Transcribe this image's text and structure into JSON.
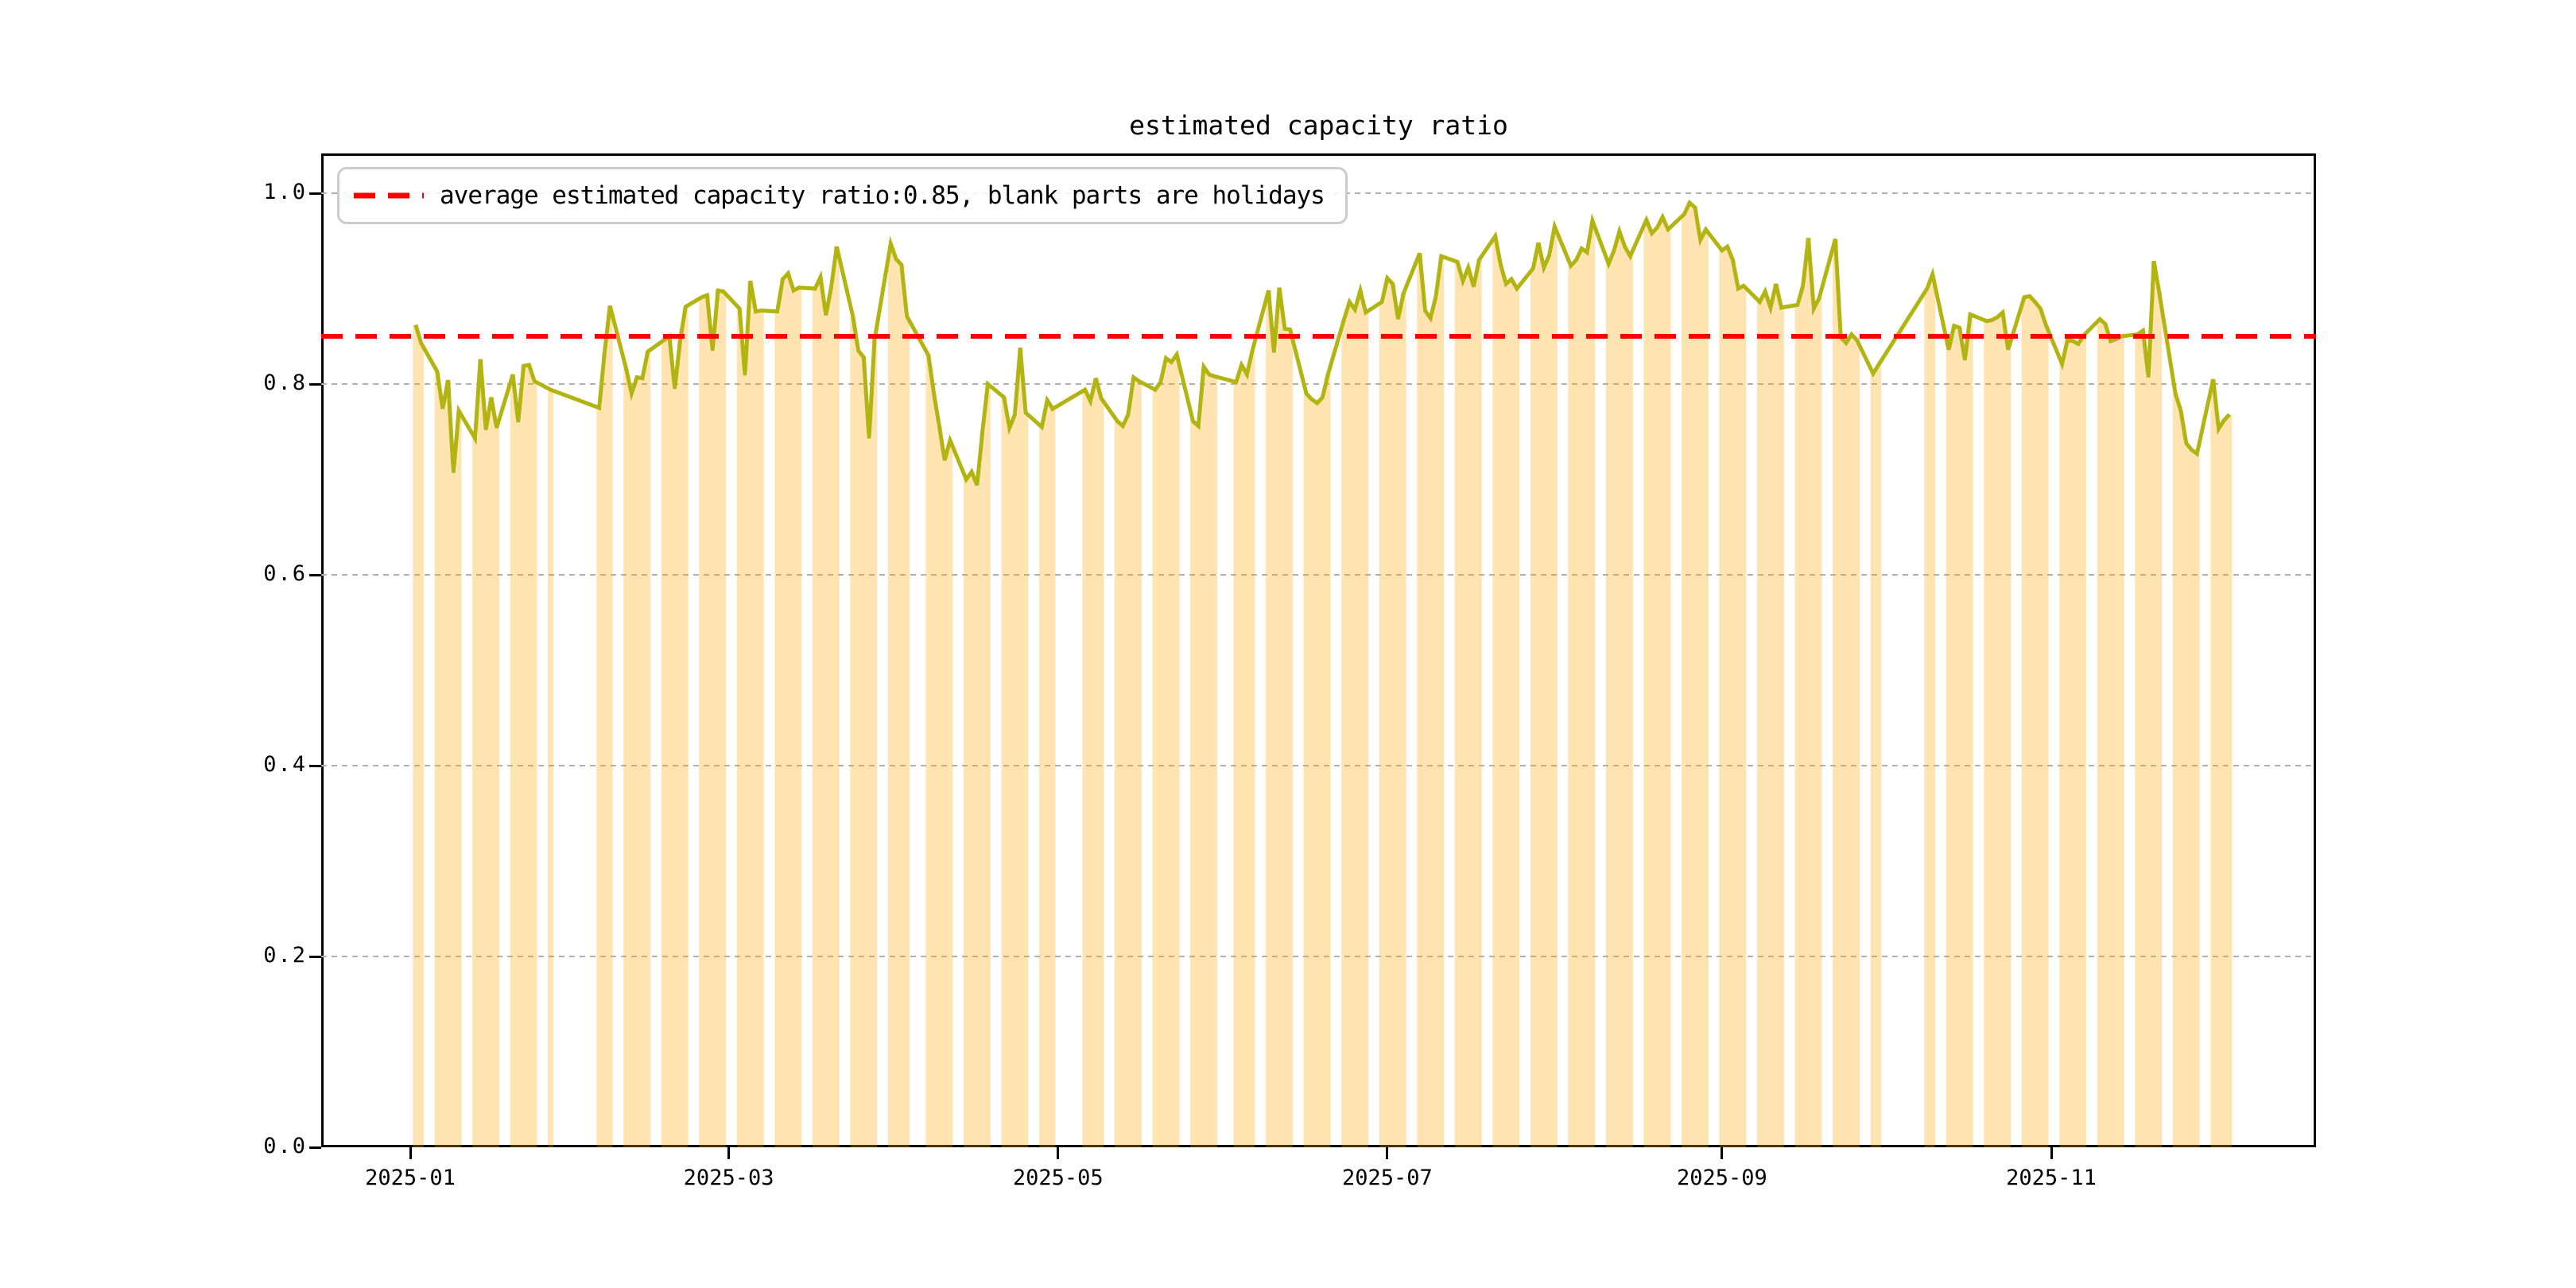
{
  "chart_data": {
    "type": "line+bar",
    "title": "estimated capacity ratio",
    "series_name": "estimated capacity ratio",
    "legend": {
      "position": "upper-left",
      "entries": [
        {
          "marker": "red-dashed-line",
          "label": "average estimated capacity ratio:0.85, blank parts are holidays"
        }
      ]
    },
    "average_line": {
      "value": 0.85,
      "color": "#ff0000",
      "style": "dashed"
    },
    "colors": {
      "line": "#b1b411",
      "bar_fill": "rgba(255,165,0,0.3)",
      "grid": "#b0b0b0",
      "spine": "#000000",
      "background": "#ffffff"
    },
    "grid": true,
    "x_axis": {
      "tick_dates": [
        "2025-01-01",
        "2025-03-01",
        "2025-05-01",
        "2025-07-01",
        "2025-09-01",
        "2025-11-01"
      ],
      "tick_labels": [
        "2025-01",
        "2025-03",
        "2025-05",
        "2025-07",
        "2025-09",
        "2025-11"
      ],
      "data_start": "2025-01-02",
      "data_end": "2025-12-04"
    },
    "y_axis": {
      "tick_labels": [
        "0.0",
        "0.2",
        "0.4",
        "0.6",
        "0.8",
        "1.0"
      ],
      "ticks": [
        0.0,
        0.2,
        0.4,
        0.6,
        0.8,
        1.0
      ],
      "range": [
        0.0,
        1.0417
      ]
    },
    "note": "bars = workdays (ratio value); blank parts are holidays/weekends; line connects workday values across gaps",
    "points_by_month": [
      {
        "month": "2025-01",
        "days": [
          2,
          3,
          6,
          7,
          8,
          9,
          10,
          13,
          14,
          15,
          16,
          17,
          20,
          21,
          22,
          23,
          24,
          27
        ],
        "values": [
          0.862,
          0.843,
          0.813,
          0.774,
          0.804,
          0.707,
          0.772,
          0.743,
          0.826,
          0.752,
          0.786,
          0.754,
          0.81,
          0.76,
          0.819,
          0.82,
          0.803,
          0.794
        ]
      },
      {
        "month": "2025-02",
        "days": [
          5,
          6,
          7,
          10,
          11,
          12,
          13,
          14,
          17,
          18,
          19,
          20,
          21,
          24,
          25,
          26,
          27,
          28
        ],
        "values": [
          0.775,
          0.833,
          0.882,
          0.816,
          0.79,
          0.807,
          0.806,
          0.834,
          0.846,
          0.85,
          0.795,
          0.846,
          0.881,
          0.891,
          0.893,
          0.835,
          0.898,
          0.897
        ]
      },
      {
        "month": "2025-03",
        "days": [
          3,
          4,
          5,
          6,
          7,
          10,
          11,
          12,
          13,
          14,
          17,
          18,
          19,
          20,
          21,
          24,
          25,
          26,
          27,
          28,
          31
        ],
        "values": [
          0.879,
          0.809,
          0.908,
          0.876,
          0.877,
          0.876,
          0.91,
          0.916,
          0.898,
          0.901,
          0.9,
          0.912,
          0.872,
          0.902,
          0.944,
          0.871,
          0.835,
          0.828,
          0.743,
          0.846,
          0.947
        ]
      },
      {
        "month": "2025-04",
        "days": [
          1,
          2,
          3,
          7,
          8,
          9,
          10,
          11,
          14,
          15,
          16,
          17,
          18,
          21,
          22,
          23,
          24,
          25,
          28,
          29,
          30
        ],
        "values": [
          0.931,
          0.925,
          0.871,
          0.83,
          0.79,
          0.756,
          0.72,
          0.741,
          0.7,
          0.708,
          0.694,
          0.75,
          0.8,
          0.786,
          0.754,
          0.768,
          0.838,
          0.77,
          0.755,
          0.783,
          0.774
        ]
      },
      {
        "month": "2025-05",
        "days": [
          6,
          7,
          8,
          9,
          12,
          13,
          14,
          15,
          16,
          19,
          20,
          21,
          22,
          23,
          26,
          27,
          28,
          29,
          30
        ],
        "values": [
          0.794,
          0.782,
          0.806,
          0.785,
          0.761,
          0.756,
          0.768,
          0.807,
          0.803,
          0.794,
          0.802,
          0.827,
          0.823,
          0.831,
          0.761,
          0.756,
          0.818,
          0.81,
          0.808
        ]
      },
      {
        "month": "2025-06",
        "days": [
          3,
          4,
          5,
          6,
          9,
          10,
          11,
          12,
          13,
          16,
          17,
          18,
          19,
          20,
          23,
          24,
          25,
          26,
          27,
          30
        ],
        "values": [
          0.802,
          0.82,
          0.81,
          0.835,
          0.898,
          0.833,
          0.901,
          0.858,
          0.857,
          0.79,
          0.784,
          0.78,
          0.786,
          0.81,
          0.868,
          0.886,
          0.878,
          0.898,
          0.875,
          0.886
        ]
      },
      {
        "month": "2025-07",
        "days": [
          1,
          2,
          3,
          4,
          7,
          8,
          9,
          10,
          11,
          14,
          15,
          16,
          17,
          18,
          21,
          22,
          23,
          24,
          25,
          28,
          29,
          30,
          31
        ],
        "values": [
          0.911,
          0.905,
          0.868,
          0.895,
          0.937,
          0.877,
          0.869,
          0.892,
          0.934,
          0.928,
          0.908,
          0.922,
          0.902,
          0.93,
          0.955,
          0.925,
          0.905,
          0.91,
          0.9,
          0.921,
          0.948,
          0.922,
          0.935
        ]
      },
      {
        "month": "2025-08",
        "days": [
          1,
          4,
          5,
          6,
          7,
          8,
          11,
          12,
          13,
          14,
          15,
          18,
          19,
          20,
          21,
          22,
          25,
          26,
          27,
          28,
          29
        ],
        "values": [
          0.965,
          0.924,
          0.93,
          0.942,
          0.938,
          0.971,
          0.926,
          0.94,
          0.96,
          0.944,
          0.934,
          0.972,
          0.958,
          0.964,
          0.975,
          0.962,
          0.978,
          0.99,
          0.985,
          0.951,
          0.962
        ]
      },
      {
        "month": "2025-09",
        "days": [
          1,
          2,
          3,
          4,
          5,
          8,
          9,
          10,
          11,
          12,
          15,
          16,
          17,
          18,
          19,
          22,
          23,
          24,
          25,
          26,
          29,
          30
        ],
        "values": [
          0.94,
          0.944,
          0.93,
          0.9,
          0.903,
          0.886,
          0.897,
          0.88,
          0.905,
          0.88,
          0.883,
          0.903,
          0.953,
          0.879,
          0.89,
          0.952,
          0.849,
          0.843,
          0.852,
          0.846,
          0.811,
          0.82
        ]
      },
      {
        "month": "2025-10",
        "days": [
          9,
          10,
          13,
          14,
          15,
          16,
          17,
          20,
          21,
          22,
          23,
          24,
          27,
          28,
          29,
          30,
          31
        ],
        "values": [
          0.9,
          0.915,
          0.836,
          0.861,
          0.859,
          0.825,
          0.873,
          0.866,
          0.867,
          0.87,
          0.875,
          0.836,
          0.891,
          0.892,
          0.886,
          0.879,
          0.862
        ]
      },
      {
        "month": "2025-11",
        "days": [
          3,
          4,
          5,
          6,
          7,
          10,
          11,
          12,
          13,
          14,
          17,
          18,
          19,
          20,
          21,
          24,
          25,
          26,
          27,
          28
        ],
        "values": [
          0.821,
          0.846,
          0.845,
          0.842,
          0.851,
          0.868,
          0.863,
          0.845,
          0.847,
          0.85,
          0.852,
          0.856,
          0.807,
          0.929,
          0.896,
          0.79,
          0.772,
          0.738,
          0.731,
          0.727
        ]
      },
      {
        "month": "2025-12",
        "days": [
          1,
          2,
          3,
          4
        ],
        "values": [
          0.805,
          0.753,
          0.762,
          0.768
        ]
      }
    ]
  },
  "layout_values": {
    "avg_dash_sample": "two red dashes"
  }
}
